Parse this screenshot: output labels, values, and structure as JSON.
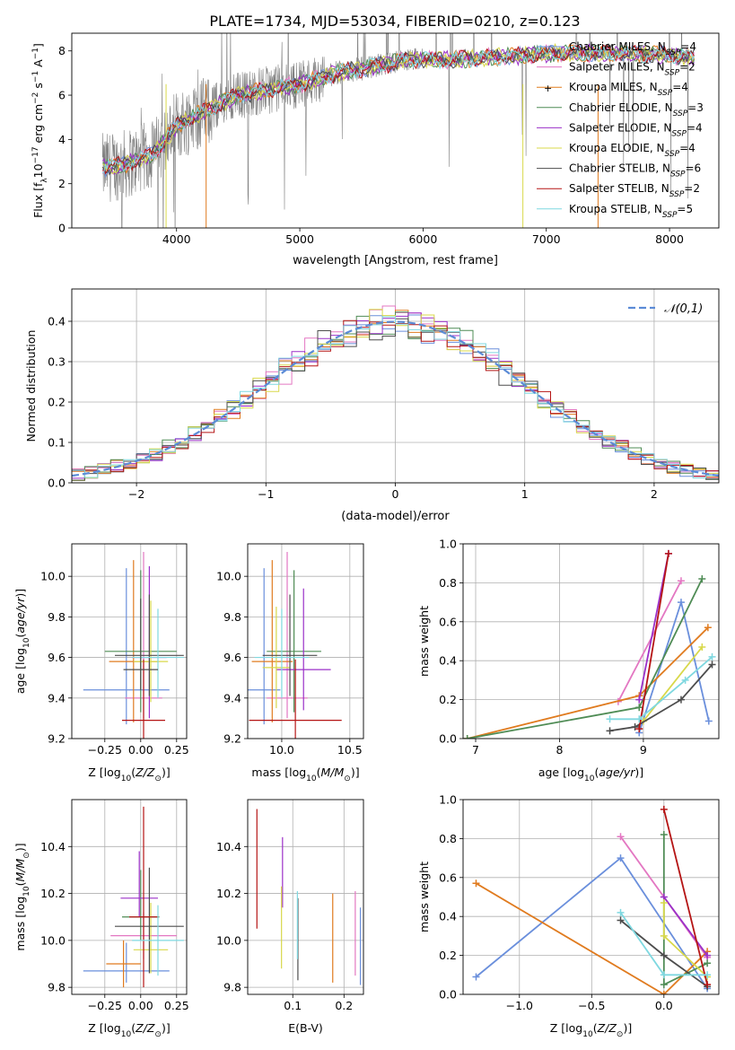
{
  "title": "PLATE=1734, MJD=53034, FIBERID=0210, z=0.123",
  "chart_data": [
    {
      "id": "spectrum",
      "type": "line",
      "xlabel": "wavelength [Angstrom, rest frame]",
      "ylabel": "Flux [f_λ 10^-17 erg cm^-2 s^-1 A^-1]",
      "xlim": [
        3150,
        8400
      ],
      "ylim": [
        0,
        8.8
      ],
      "xticks": [
        4000,
        5000,
        6000,
        7000,
        8000
      ],
      "yticks": [
        0,
        2,
        4,
        6,
        8
      ],
      "data_series": {
        "name": "data",
        "color": "#808080",
        "x": [
          3400,
          3600,
          3800,
          4000,
          4200,
          4500,
          4800,
          5000,
          5300,
          5600,
          5900,
          6200,
          6500,
          6800,
          7100,
          7400,
          7700,
          8000,
          8200
        ],
        "y": [
          2.7,
          2.9,
          3.3,
          4.6,
          5.2,
          6.0,
          6.3,
          6.5,
          7.0,
          7.3,
          7.6,
          7.6,
          7.7,
          7.8,
          7.9,
          7.9,
          7.9,
          7.8,
          7.7
        ]
      },
      "models": [
        {
          "name": "Chabrier MILES",
          "nssp": "4",
          "color": "#6a8fdc"
        },
        {
          "name": "Salpeter MILES",
          "nssp": "2",
          "color": "#e377c2"
        },
        {
          "name": "Kroupa MILES",
          "nssp": "4",
          "color": "#e07b1f"
        },
        {
          "name": "Chabrier ELODIE",
          "nssp": "3",
          "color": "#4f8c55"
        },
        {
          "name": "Salpeter ELODIE",
          "nssp": "4",
          "color": "#9b30c8"
        },
        {
          "name": "Kroupa ELODIE",
          "nssp": "4",
          "color": "#d8d84a"
        },
        {
          "name": "Chabrier STELIB",
          "nssp": "6",
          "color": "#4d4d4d"
        },
        {
          "name": "Salpeter STELIB",
          "nssp": "2",
          "color": "#b51515"
        },
        {
          "name": "Kroupa STELIB",
          "nssp": "5",
          "color": "#7fd8e0"
        }
      ],
      "legend": "right"
    },
    {
      "id": "residuals",
      "type": "histogram",
      "xlabel": "(data-model)/error",
      "ylabel": "Normed distribution",
      "xlim": [
        -2.5,
        2.5
      ],
      "ylim": [
        0,
        0.48
      ],
      "xticks": [
        -2,
        -1,
        0,
        1,
        2
      ],
      "yticks": [
        0.0,
        0.1,
        0.2,
        0.3,
        0.4
      ],
      "reference_label": "𝒩(0,1)",
      "grid": true,
      "legend": "top-right"
    },
    {
      "id": "age-vs-Z",
      "type": "errorbar",
      "xlabel": "Z [log10(Z/Z⊙)]",
      "ylabel": "age [log10(age/yr)]",
      "xlim": [
        -0.48,
        0.32
      ],
      "ylim": [
        9.2,
        10.16
      ],
      "xticks": [
        -0.25,
        0.0,
        0.25
      ],
      "yticks": [
        9.2,
        9.4,
        9.6,
        9.8,
        10.0
      ],
      "points": [
        {
          "color": "#6a8fdc",
          "x": -0.1,
          "xerr": 0.3,
          "y": 9.44,
          "yerr": [
            0.17,
            0.6
          ]
        },
        {
          "color": "#e377c2",
          "x": 0.02,
          "xerr": 0.13,
          "y": 9.4,
          "yerr": [
            0.1,
            0.72
          ]
        },
        {
          "color": "#e07b1f",
          "x": -0.05,
          "xerr": 0.17,
          "y": 9.58,
          "yerr": [
            0.3,
            0.5
          ]
        },
        {
          "color": "#4f8c55",
          "x": 0.0,
          "xerr": 0.25,
          "y": 9.63,
          "yerr": [
            0.3,
            0.4
          ]
        },
        {
          "color": "#9b30c8",
          "x": 0.06,
          "xerr": 0.12,
          "y": 9.6,
          "yerr": [
            0.3,
            0.45
          ]
        },
        {
          "color": "#d8d84a",
          "x": 0.07,
          "xerr": 0.12,
          "y": 9.58,
          "yerr": [
            0.2,
            0.3
          ]
        },
        {
          "color": "#4d4d4d",
          "x": 0.06,
          "xerr": 0.24,
          "y": 9.61,
          "yerr": [
            0.2,
            0.3
          ]
        },
        {
          "color": "#b51515",
          "x": 0.02,
          "xerr": 0.15,
          "y": 9.29,
          "yerr": [
            0.09,
            0.3
          ]
        },
        {
          "color": "#7fd8e0",
          "x": 0.12,
          "xerr": 0.18,
          "y": 9.6,
          "yerr": [
            0.2,
            0.24
          ]
        },
        {
          "color": "#4d4d4d",
          "x": 0.0,
          "xerr": 0.12,
          "y": 9.54,
          "yerr": [
            0.1,
            0.35
          ]
        }
      ]
    },
    {
      "id": "age-vs-mass",
      "type": "errorbar",
      "xlabel": "mass [log10(M/M⊙)]",
      "ylabel": "",
      "xlim": [
        9.75,
        10.6
      ],
      "ylim": [
        9.2,
        10.16
      ],
      "xticks": [
        10.0,
        10.5
      ],
      "yticks": [
        9.2,
        9.4,
        9.6,
        9.8,
        10.0
      ],
      "points": [
        {
          "color": "#6a8fdc",
          "x": 9.87,
          "xerr": 0.12,
          "y": 9.44,
          "yerr": [
            0.17,
            0.6
          ]
        },
        {
          "color": "#e377c2",
          "x": 10.04,
          "xerr": 0.15,
          "y": 9.4,
          "yerr": [
            0.1,
            0.72
          ]
        },
        {
          "color": "#e07b1f",
          "x": 9.93,
          "xerr": 0.15,
          "y": 9.58,
          "yerr": [
            0.3,
            0.5
          ]
        },
        {
          "color": "#4f8c55",
          "x": 10.09,
          "xerr": 0.2,
          "y": 9.63,
          "yerr": [
            0.3,
            0.4
          ]
        },
        {
          "color": "#9b30c8",
          "x": 10.16,
          "xerr": 0.2,
          "y": 9.54,
          "yerr": [
            0.2,
            0.4
          ]
        },
        {
          "color": "#d8d84a",
          "x": 9.96,
          "xerr": 0.1,
          "y": 9.55,
          "yerr": [
            0.2,
            0.3
          ]
        },
        {
          "color": "#4d4d4d",
          "x": 10.06,
          "xerr": 0.2,
          "y": 9.61,
          "yerr": [
            0.2,
            0.3
          ]
        },
        {
          "color": "#b51515",
          "x": 10.1,
          "xerr": 0.34,
          "y": 9.29,
          "yerr": [
            0.09,
            0.3
          ]
        },
        {
          "color": "#7fd8e0",
          "x": 10.0,
          "xerr": 0.2,
          "y": 9.6,
          "yerr": [
            0.2,
            0.24
          ]
        }
      ]
    },
    {
      "id": "weight-vs-age",
      "type": "line",
      "xlabel": "age [log10(age/yr)]",
      "ylabel": "mass weight",
      "xlim": [
        6.85,
        9.9
      ],
      "ylim": [
        0,
        1.0
      ],
      "xticks": [
        7,
        8,
        9
      ],
      "yticks": [
        0.0,
        0.2,
        0.4,
        0.6,
        0.8,
        1.0
      ],
      "grid": true,
      "series": [
        {
          "color": "#6a8fdc",
          "x": [
            8.95,
            9.45,
            9.78
          ],
          "y": [
            0.03,
            0.7,
            0.09
          ]
        },
        {
          "color": "#e377c2",
          "x": [
            8.7,
            9.45
          ],
          "y": [
            0.19,
            0.81
          ]
        },
        {
          "color": "#e07b1f",
          "x": [
            6.9,
            8.95,
            9.77
          ],
          "y": [
            0.0,
            0.22,
            0.57
          ]
        },
        {
          "color": "#4f8c55",
          "x": [
            6.9,
            8.95,
            9.7
          ],
          "y": [
            0.0,
            0.16,
            0.82
          ]
        },
        {
          "color": "#9b30c8",
          "x": [
            8.95,
            9.3
          ],
          "y": [
            0.2,
            0.95
          ]
        },
        {
          "color": "#d8d84a",
          "x": [
            9.0,
            9.7
          ],
          "y": [
            0.09,
            0.47
          ]
        },
        {
          "color": "#4d4d4d",
          "x": [
            8.6,
            8.9,
            9.45,
            9.82
          ],
          "y": [
            0.04,
            0.06,
            0.2,
            0.38
          ]
        },
        {
          "color": "#b51515",
          "x": [
            8.95,
            9.3
          ],
          "y": [
            0.05,
            0.95
          ]
        },
        {
          "color": "#7fd8e0",
          "x": [
            8.6,
            8.95,
            9.5,
            9.82
          ],
          "y": [
            0.1,
            0.1,
            0.3,
            0.42
          ]
        }
      ]
    },
    {
      "id": "mass-vs-Z",
      "type": "errorbar",
      "xlabel": "Z [log10(Z/Z⊙)]",
      "ylabel": "mass [log10(M/M⊙)]",
      "xlim": [
        -0.48,
        0.32
      ],
      "ylim": [
        9.77,
        10.6
      ],
      "xticks": [
        -0.25,
        0.0,
        0.25
      ],
      "yticks": [
        9.8,
        10.0,
        10.2,
        10.4
      ],
      "points": [
        {
          "color": "#6a8fdc",
          "x": -0.1,
          "xerr": 0.3,
          "y": 9.87,
          "yerr": [
            0.05,
            0.12
          ]
        },
        {
          "color": "#e377c2",
          "x": 0.02,
          "xerr": 0.23,
          "y": 10.02,
          "yerr": [
            0.1,
            0.1
          ]
        },
        {
          "color": "#e07b1f",
          "x": -0.12,
          "xerr": 0.12,
          "y": 9.9,
          "yerr": [
            0.1,
            0.1
          ]
        },
        {
          "color": "#4f8c55",
          "x": 0.0,
          "xerr": 0.13,
          "y": 10.1,
          "yerr": [
            0.1,
            0.2
          ]
        },
        {
          "color": "#9b30c8",
          "x": -0.01,
          "xerr": 0.13,
          "y": 10.18,
          "yerr": [
            0.08,
            0.2
          ]
        },
        {
          "color": "#d8d84a",
          "x": 0.07,
          "xerr": 0.12,
          "y": 9.96,
          "yerr": [
            0.1,
            0.2
          ]
        },
        {
          "color": "#4d4d4d",
          "x": 0.06,
          "xerr": 0.24,
          "y": 10.06,
          "yerr": [
            0.2,
            0.25
          ]
        },
        {
          "color": "#b51515",
          "x": 0.02,
          "xerr": 0.1,
          "y": 10.1,
          "yerr": [
            0.3,
            0.47
          ]
        },
        {
          "color": "#7fd8e0",
          "x": 0.12,
          "xerr": 0.18,
          "y": 10.0,
          "yerr": [
            0.15,
            0.15
          ]
        }
      ]
    },
    {
      "id": "mass-vs-ebv",
      "type": "errorbar",
      "xlabel": "E(B-V)",
      "ylabel": "",
      "xlim": [
        0.012,
        0.238
      ],
      "ylim": [
        9.77,
        10.6
      ],
      "xticks": [
        0.1,
        0.2
      ],
      "yticks": [
        9.8,
        10.0,
        10.2,
        10.4
      ],
      "points": [
        {
          "color": "#b51515",
          "x": 0.03,
          "y": 10.3,
          "yerr": [
            0.25,
            0.26
          ]
        },
        {
          "color": "#9b30c8",
          "x": 0.08,
          "y": 10.3,
          "yerr": [
            0.16,
            0.14
          ]
        },
        {
          "color": "#d8d84a",
          "x": 0.078,
          "y": 10.06,
          "yerr": [
            0.18,
            0.17
          ]
        },
        {
          "color": "#4d4d4d",
          "x": 0.11,
          "y": 9.98,
          "yerr": [
            0.15,
            0.2
          ]
        },
        {
          "color": "#7fd8e0",
          "x": 0.109,
          "y": 10.06,
          "yerr": [
            0.14,
            0.15
          ]
        },
        {
          "color": "#e07b1f",
          "x": 0.178,
          "y": 10.02,
          "yerr": [
            0.2,
            0.18
          ]
        },
        {
          "color": "#e377c2",
          "x": 0.222,
          "y": 10.05,
          "yerr": [
            0.2,
            0.16
          ]
        },
        {
          "color": "#6a8fdc",
          "x": 0.232,
          "y": 9.98,
          "yerr": [
            0.17,
            0.16
          ]
        }
      ]
    },
    {
      "id": "weight-vs-Z",
      "type": "line",
      "xlabel": "Z [log10(Z/Z⊙)]",
      "ylabel": "mass weight",
      "xlim": [
        -1.39,
        0.38
      ],
      "ylim": [
        0,
        1.0
      ],
      "xticks": [
        -1.0,
        -0.5,
        0.0
      ],
      "yticks": [
        0.0,
        0.2,
        0.4,
        0.6,
        0.8,
        1.0
      ],
      "grid": true,
      "series": [
        {
          "color": "#6a8fdc",
          "x": [
            -1.3,
            -0.3,
            0.3
          ],
          "y": [
            0.09,
            0.7,
            0.03
          ]
        },
        {
          "color": "#e377c2",
          "x": [
            -0.3,
            0.3
          ],
          "y": [
            0.81,
            0.19
          ]
        },
        {
          "color": "#e07b1f",
          "x": [
            -1.3,
            0.0,
            0.3
          ],
          "y": [
            0.57,
            0.0,
            0.22
          ]
        },
        {
          "color": "#4f8c55",
          "x": [
            0.0,
            0.0,
            0.3
          ],
          "y": [
            0.82,
            0.05,
            0.16
          ]
        },
        {
          "color": "#9b30c8",
          "x": [
            0.0,
            0.3
          ],
          "y": [
            0.5,
            0.2
          ]
        },
        {
          "color": "#d8d84a",
          "x": [
            0.0,
            0.0,
            0.3
          ],
          "y": [
            0.47,
            0.3,
            0.09
          ]
        },
        {
          "color": "#4d4d4d",
          "x": [
            -0.3,
            0.0,
            0.3
          ],
          "y": [
            0.38,
            0.2,
            0.04
          ]
        },
        {
          "color": "#b51515",
          "x": [
            0.0,
            0.3
          ],
          "y": [
            0.95,
            0.05
          ]
        },
        {
          "color": "#7fd8e0",
          "x": [
            -0.3,
            0.0,
            0.3
          ],
          "y": [
            0.42,
            0.1,
            0.1
          ]
        }
      ]
    }
  ]
}
